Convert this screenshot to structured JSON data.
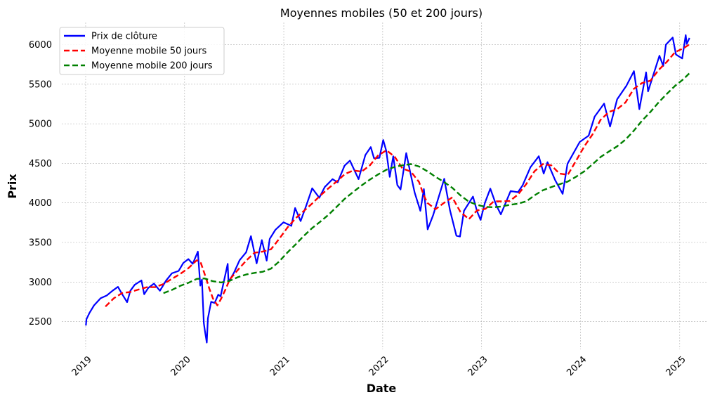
{
  "chart_data": {
    "type": "line",
    "title": "Moyennes mobiles (50 et 200 jours)",
    "xlabel": "Date",
    "ylabel": "Prix",
    "xlim": [
      "2018-10-05",
      "2025-04-10"
    ],
    "ylim": [
      2150,
      6280
    ],
    "x_ticks": [
      "2019",
      "2020",
      "2021",
      "2022",
      "2023",
      "2024",
      "2025"
    ],
    "y_ticks": [
      2500,
      3000,
      3500,
      4000,
      4500,
      5000,
      5500,
      6000
    ],
    "grid": true,
    "legend_position": "top-left",
    "series": [
      {
        "name": "Prix de clôture",
        "color": "#0000ff",
        "style": "solid",
        "points": [
          [
            "2019-01-02",
            2450
          ],
          [
            "2019-01-04",
            2530
          ],
          [
            "2019-01-15",
            2610
          ],
          [
            "2019-02-01",
            2705
          ],
          [
            "2019-02-25",
            2795
          ],
          [
            "2019-03-20",
            2830
          ],
          [
            "2019-04-10",
            2890
          ],
          [
            "2019-04-30",
            2940
          ],
          [
            "2019-05-15",
            2850
          ],
          [
            "2019-06-03",
            2745
          ],
          [
            "2019-06-15",
            2890
          ],
          [
            "2019-07-01",
            2965
          ],
          [
            "2019-07-26",
            3020
          ],
          [
            "2019-08-05",
            2845
          ],
          [
            "2019-08-20",
            2925
          ],
          [
            "2019-09-10",
            2980
          ],
          [
            "2019-10-02",
            2890
          ],
          [
            "2019-10-25",
            3020
          ],
          [
            "2019-11-15",
            3110
          ],
          [
            "2019-12-10",
            3140
          ],
          [
            "2019-12-27",
            3240
          ],
          [
            "2020-01-15",
            3290
          ],
          [
            "2020-01-31",
            3230
          ],
          [
            "2020-02-19",
            3385
          ],
          [
            "2020-02-28",
            2955
          ],
          [
            "2020-03-05",
            3030
          ],
          [
            "2020-03-12",
            2480
          ],
          [
            "2020-03-16",
            2385
          ],
          [
            "2020-03-23",
            2235
          ],
          [
            "2020-03-27",
            2540
          ],
          [
            "2020-04-08",
            2750
          ],
          [
            "2020-04-21",
            2735
          ],
          [
            "2020-05-04",
            2840
          ],
          [
            "2020-05-13",
            2820
          ],
          [
            "2020-06-08",
            3230
          ],
          [
            "2020-06-11",
            3000
          ],
          [
            "2020-07-01",
            3115
          ],
          [
            "2020-07-22",
            3275
          ],
          [
            "2020-08-15",
            3375
          ],
          [
            "2020-09-02",
            3580
          ],
          [
            "2020-09-23",
            3235
          ],
          [
            "2020-10-12",
            3530
          ],
          [
            "2020-10-30",
            3270
          ],
          [
            "2020-11-10",
            3545
          ],
          [
            "2020-12-01",
            3660
          ],
          [
            "2020-12-31",
            3755
          ],
          [
            "2021-01-29",
            3710
          ],
          [
            "2021-02-12",
            3935
          ],
          [
            "2021-03-04",
            3770
          ],
          [
            "2021-03-26",
            3975
          ],
          [
            "2021-04-16",
            4185
          ],
          [
            "2021-05-12",
            4065
          ],
          [
            "2021-06-01",
            4200
          ],
          [
            "2021-06-30",
            4300
          ],
          [
            "2021-07-19",
            4260
          ],
          [
            "2021-08-13",
            4470
          ],
          [
            "2021-09-02",
            4535
          ],
          [
            "2021-10-04",
            4300
          ],
          [
            "2021-10-29",
            4605
          ],
          [
            "2021-11-18",
            4705
          ],
          [
            "2021-11-30",
            4565
          ],
          [
            "2021-12-20",
            4570
          ],
          [
            "2022-01-03",
            4795
          ],
          [
            "2022-01-14",
            4660
          ],
          [
            "2022-01-27",
            4330
          ],
          [
            "2022-02-09",
            4590
          ],
          [
            "2022-02-24",
            4225
          ],
          [
            "2022-03-08",
            4170
          ],
          [
            "2022-03-29",
            4630
          ],
          [
            "2022-04-12",
            4395
          ],
          [
            "2022-04-29",
            4130
          ],
          [
            "2022-05-20",
            3900
          ],
          [
            "2022-06-02",
            4175
          ],
          [
            "2022-06-16",
            3665
          ],
          [
            "2022-07-06",
            3845
          ],
          [
            "2022-08-16",
            4305
          ],
          [
            "2022-09-06",
            3910
          ],
          [
            "2022-09-30",
            3585
          ],
          [
            "2022-10-13",
            3575
          ],
          [
            "2022-10-28",
            3900
          ],
          [
            "2022-11-30",
            4080
          ],
          [
            "2022-12-15",
            3895
          ],
          [
            "2022-12-28",
            3785
          ],
          [
            "2023-01-13",
            4000
          ],
          [
            "2023-02-02",
            4180
          ],
          [
            "2023-02-24",
            3970
          ],
          [
            "2023-03-13",
            3855
          ],
          [
            "2023-04-18",
            4150
          ],
          [
            "2023-05-15",
            4135
          ],
          [
            "2023-06-01",
            4220
          ],
          [
            "2023-06-30",
            4450
          ],
          [
            "2023-07-31",
            4590
          ],
          [
            "2023-08-18",
            4370
          ],
          [
            "2023-09-01",
            4515
          ],
          [
            "2023-09-29",
            4290
          ],
          [
            "2023-10-27",
            4115
          ],
          [
            "2023-11-14",
            4495
          ],
          [
            "2023-12-29",
            4770
          ],
          [
            "2024-01-31",
            4850
          ],
          [
            "2024-02-22",
            5090
          ],
          [
            "2024-03-28",
            5255
          ],
          [
            "2024-04-19",
            4965
          ],
          [
            "2024-05-15",
            5310
          ],
          [
            "2024-06-18",
            5480
          ],
          [
            "2024-07-16",
            5665
          ],
          [
            "2024-08-05",
            5185
          ],
          [
            "2024-08-30",
            5650
          ],
          [
            "2024-09-06",
            5410
          ],
          [
            "2024-10-18",
            5860
          ],
          [
            "2024-11-01",
            5730
          ],
          [
            "2024-11-11",
            6000
          ],
          [
            "2024-12-06",
            6090
          ],
          [
            "2024-12-18",
            5875
          ],
          [
            "2025-01-10",
            5825
          ],
          [
            "2025-01-23",
            6120
          ],
          [
            "2025-01-27",
            6010
          ],
          [
            "2025-02-06",
            6085
          ]
        ]
      },
      {
        "name": "Moyenne mobile 50 jours",
        "color": "#ff0000",
        "style": "dashed",
        "points": [
          [
            "2019-03-15",
            2690
          ],
          [
            "2019-04-15",
            2795
          ],
          [
            "2019-05-15",
            2860
          ],
          [
            "2019-06-15",
            2875
          ],
          [
            "2019-07-15",
            2905
          ],
          [
            "2019-08-15",
            2935
          ],
          [
            "2019-09-15",
            2935
          ],
          [
            "2019-10-15",
            2975
          ],
          [
            "2019-11-15",
            3040
          ],
          [
            "2019-12-15",
            3100
          ],
          [
            "2020-01-15",
            3175
          ],
          [
            "2020-02-15",
            3275
          ],
          [
            "2020-03-01",
            3240
          ],
          [
            "2020-03-15",
            3100
          ],
          [
            "2020-04-01",
            2920
          ],
          [
            "2020-04-15",
            2790
          ],
          [
            "2020-05-01",
            2705
          ],
          [
            "2020-05-15",
            2790
          ],
          [
            "2020-06-01",
            2915
          ],
          [
            "2020-06-15",
            3030
          ],
          [
            "2020-07-15",
            3150
          ],
          [
            "2020-08-15",
            3270
          ],
          [
            "2020-09-15",
            3370
          ],
          [
            "2020-10-15",
            3385
          ],
          [
            "2020-11-15",
            3415
          ],
          [
            "2020-12-15",
            3545
          ],
          [
            "2021-01-15",
            3690
          ],
          [
            "2021-02-15",
            3810
          ],
          [
            "2021-03-15",
            3895
          ],
          [
            "2021-04-15",
            3990
          ],
          [
            "2021-05-15",
            4090
          ],
          [
            "2021-06-15",
            4185
          ],
          [
            "2021-07-15",
            4270
          ],
          [
            "2021-08-15",
            4365
          ],
          [
            "2021-09-15",
            4410
          ],
          [
            "2021-10-15",
            4395
          ],
          [
            "2021-11-15",
            4475
          ],
          [
            "2021-12-15",
            4600
          ],
          [
            "2022-01-15",
            4665
          ],
          [
            "2022-02-15",
            4580
          ],
          [
            "2022-03-15",
            4435
          ],
          [
            "2022-04-15",
            4395
          ],
          [
            "2022-05-15",
            4265
          ],
          [
            "2022-06-01",
            4100
          ],
          [
            "2022-06-15",
            4000
          ],
          [
            "2022-07-15",
            3920
          ],
          [
            "2022-08-15",
            4000
          ],
          [
            "2022-09-15",
            4070
          ],
          [
            "2022-10-15",
            3885
          ],
          [
            "2022-11-15",
            3795
          ],
          [
            "2022-12-15",
            3905
          ],
          [
            "2023-01-15",
            3925
          ],
          [
            "2023-02-15",
            4020
          ],
          [
            "2023-03-15",
            4020
          ],
          [
            "2023-04-15",
            4025
          ],
          [
            "2023-05-15",
            4105
          ],
          [
            "2023-06-15",
            4240
          ],
          [
            "2023-07-15",
            4400
          ],
          [
            "2023-08-15",
            4490
          ],
          [
            "2023-09-15",
            4475
          ],
          [
            "2023-10-15",
            4370
          ],
          [
            "2023-11-15",
            4355
          ],
          [
            "2023-12-15",
            4530
          ],
          [
            "2024-01-15",
            4715
          ],
          [
            "2024-02-15",
            4870
          ],
          [
            "2024-03-15",
            5050
          ],
          [
            "2024-04-15",
            5150
          ],
          [
            "2024-05-15",
            5185
          ],
          [
            "2024-06-15",
            5270
          ],
          [
            "2024-07-15",
            5440
          ],
          [
            "2024-08-15",
            5515
          ],
          [
            "2024-09-15",
            5545
          ],
          [
            "2024-10-15",
            5680
          ],
          [
            "2024-11-15",
            5785
          ],
          [
            "2024-12-15",
            5905
          ],
          [
            "2025-01-15",
            5955
          ],
          [
            "2025-02-06",
            6005
          ]
        ]
      },
      {
        "name": "Moyenne mobile 200 jours",
        "color": "#008000",
        "style": "dashed",
        "points": [
          [
            "2019-10-15",
            2860
          ],
          [
            "2019-11-15",
            2900
          ],
          [
            "2019-12-15",
            2950
          ],
          [
            "2020-01-15",
            2990
          ],
          [
            "2020-02-15",
            3040
          ],
          [
            "2020-03-15",
            3045
          ],
          [
            "2020-04-15",
            3010
          ],
          [
            "2020-05-15",
            2995
          ],
          [
            "2020-06-15",
            3015
          ],
          [
            "2020-07-15",
            3060
          ],
          [
            "2020-08-15",
            3095
          ],
          [
            "2020-09-15",
            3115
          ],
          [
            "2020-10-15",
            3130
          ],
          [
            "2020-11-15",
            3170
          ],
          [
            "2020-12-15",
            3260
          ],
          [
            "2021-01-15",
            3375
          ],
          [
            "2021-02-15",
            3480
          ],
          [
            "2021-03-15",
            3580
          ],
          [
            "2021-04-15",
            3680
          ],
          [
            "2021-05-15",
            3760
          ],
          [
            "2021-06-15",
            3850
          ],
          [
            "2021-07-15",
            3950
          ],
          [
            "2021-08-15",
            4055
          ],
          [
            "2021-09-15",
            4140
          ],
          [
            "2021-10-15",
            4220
          ],
          [
            "2021-11-15",
            4295
          ],
          [
            "2021-12-15",
            4360
          ],
          [
            "2022-01-15",
            4420
          ],
          [
            "2022-02-15",
            4455
          ],
          [
            "2022-03-15",
            4475
          ],
          [
            "2022-04-15",
            4490
          ],
          [
            "2022-05-15",
            4460
          ],
          [
            "2022-06-15",
            4400
          ],
          [
            "2022-07-15",
            4330
          ],
          [
            "2022-08-15",
            4265
          ],
          [
            "2022-09-15",
            4190
          ],
          [
            "2022-10-15",
            4095
          ],
          [
            "2022-11-15",
            4015
          ],
          [
            "2022-12-15",
            3975
          ],
          [
            "2023-01-15",
            3950
          ],
          [
            "2023-02-15",
            3945
          ],
          [
            "2023-03-15",
            3955
          ],
          [
            "2023-04-15",
            3975
          ],
          [
            "2023-05-15",
            3990
          ],
          [
            "2023-06-15",
            4020
          ],
          [
            "2023-07-15",
            4095
          ],
          [
            "2023-08-15",
            4160
          ],
          [
            "2023-09-15",
            4200
          ],
          [
            "2023-10-15",
            4235
          ],
          [
            "2023-11-15",
            4270
          ],
          [
            "2023-12-15",
            4330
          ],
          [
            "2024-01-15",
            4400
          ],
          [
            "2024-02-15",
            4490
          ],
          [
            "2024-03-15",
            4580
          ],
          [
            "2024-04-15",
            4650
          ],
          [
            "2024-05-15",
            4715
          ],
          [
            "2024-06-15",
            4800
          ],
          [
            "2024-07-15",
            4910
          ],
          [
            "2024-08-15",
            5040
          ],
          [
            "2024-09-15",
            5150
          ],
          [
            "2024-10-15",
            5270
          ],
          [
            "2024-11-15",
            5380
          ],
          [
            "2024-12-15",
            5480
          ],
          [
            "2025-01-15",
            5565
          ],
          [
            "2025-02-06",
            5640
          ]
        ]
      }
    ]
  }
}
